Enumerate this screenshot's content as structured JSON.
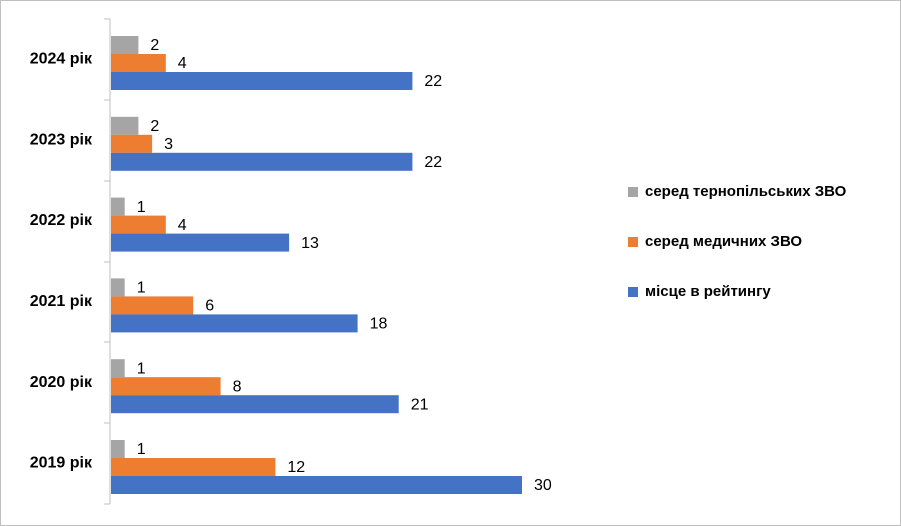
{
  "chart_data": {
    "type": "hbar",
    "categories": [
      "2024 рік",
      "2023 рік",
      "2022 рік",
      "2021 рік",
      "2020 рік",
      "2019 рік"
    ],
    "series": [
      {
        "name": "серед тернопільських ЗВО",
        "color": "#a5a5a5",
        "values": [
          2,
          2,
          1,
          1,
          1,
          1
        ]
      },
      {
        "name": "серед медичних ЗВО",
        "color": "#ed7d31",
        "values": [
          4,
          3,
          4,
          6,
          8,
          12
        ]
      },
      {
        "name": "місце в рейтингу",
        "color": "#4472c4",
        "values": [
          22,
          22,
          13,
          18,
          21,
          30
        ]
      }
    ],
    "legend": "right"
  }
}
